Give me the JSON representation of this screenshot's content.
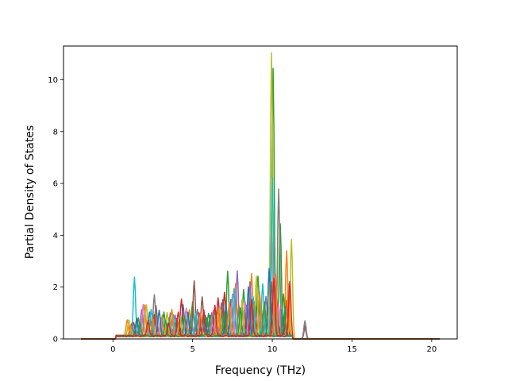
{
  "chart_data": {
    "type": "line",
    "title": "",
    "xlabel": "Frequency (THz)",
    "ylabel": "Partial Density of States",
    "xlim": [
      -3.1,
      21.6
    ],
    "ylim": [
      0,
      11.3
    ],
    "xticks": [
      0,
      5,
      10,
      15,
      20
    ],
    "yticks": [
      0,
      2,
      4,
      6,
      8,
      10
    ],
    "x_tick_labels": [
      "0",
      "5",
      "10",
      "15",
      "20"
    ],
    "y_tick_labels": [
      "0",
      "2",
      "4",
      "6",
      "8",
      "10"
    ],
    "grid": false,
    "legend": "none",
    "x_range_of_data": [
      -2,
      20.5
    ],
    "series": [
      {
        "color": "#1f77b4",
        "peaks": [
          [
            1.2,
            0.5
          ],
          [
            2.3,
            0.9
          ],
          [
            3.5,
            0.7
          ],
          [
            4.4,
            1.2
          ],
          [
            6.1,
            0.8
          ],
          [
            7.4,
            1.4
          ],
          [
            8.6,
            1.1
          ],
          [
            9.9,
            1.6
          ],
          [
            10.6,
            1.0
          ]
        ]
      },
      {
        "color": "#ff7f0e",
        "peaks": [
          [
            0.9,
            0.6
          ],
          [
            2.0,
            1.2
          ],
          [
            3.1,
            0.8
          ],
          [
            4.8,
            1.0
          ],
          [
            6.5,
            0.9
          ],
          [
            7.7,
            2.0
          ],
          [
            8.7,
            2.4
          ],
          [
            9.7,
            1.3
          ],
          [
            10.9,
            3.3
          ]
        ]
      },
      {
        "color": "#2ca02c",
        "peaks": [
          [
            1.6,
            0.7
          ],
          [
            3.2,
            0.9
          ],
          [
            5.0,
            1.3
          ],
          [
            6.0,
            0.9
          ],
          [
            7.2,
            2.5
          ],
          [
            8.2,
            1.8
          ],
          [
            9.1,
            2.3
          ],
          [
            10.05,
            10.3
          ],
          [
            10.5,
            4.3
          ]
        ]
      },
      {
        "color": "#d62728",
        "peaks": [
          [
            1.3,
            0.5
          ],
          [
            2.6,
            0.8
          ],
          [
            4.3,
            1.4
          ],
          [
            5.4,
            0.9
          ],
          [
            6.6,
            1.5
          ],
          [
            7.0,
            1.7
          ],
          [
            8.4,
            1.2
          ],
          [
            10.0,
            2.1
          ],
          [
            10.9,
            1.4
          ]
        ]
      },
      {
        "color": "#9467bd",
        "peaks": [
          [
            1.8,
            1.0
          ],
          [
            3.9,
            0.8
          ],
          [
            5.3,
            1.0
          ],
          [
            6.8,
            1.3
          ],
          [
            7.8,
            2.5
          ],
          [
            8.6,
            2.1
          ],
          [
            9.6,
            1.5
          ],
          [
            10.25,
            1.8
          ],
          [
            12.05,
            0.4
          ]
        ]
      },
      {
        "color": "#8c564b",
        "peaks": [
          [
            2.7,
            1.2
          ],
          [
            4.0,
            0.7
          ],
          [
            5.1,
            2.1
          ],
          [
            5.6,
            1.5
          ],
          [
            6.9,
            1.4
          ],
          [
            8.9,
            1.3
          ],
          [
            10.3,
            1.3
          ],
          [
            12.05,
            0.5
          ]
        ]
      },
      {
        "color": "#e377c2",
        "peaks": [
          [
            1.9,
            1.2
          ],
          [
            3.0,
            0.7
          ],
          [
            4.6,
            1.1
          ],
          [
            6.3,
            1.0
          ],
          [
            7.5,
            1.6
          ],
          [
            8.3,
            1.3
          ],
          [
            9.95,
            4.1
          ],
          [
            10.4,
            1.2
          ]
        ]
      },
      {
        "color": "#7f7f7f",
        "peaks": [
          [
            2.6,
            1.6
          ],
          [
            3.6,
            0.9
          ],
          [
            4.9,
            0.8
          ],
          [
            6.2,
            0.9
          ],
          [
            7.9,
            1.2
          ],
          [
            9.3,
            1.1
          ],
          [
            10.4,
            5.7
          ],
          [
            12.05,
            0.7
          ]
        ]
      },
      {
        "color": "#bcbd22",
        "peaks": [
          [
            1.0,
            0.6
          ],
          [
            2.1,
            1.2
          ],
          [
            3.4,
            0.9
          ],
          [
            4.2,
            0.8
          ],
          [
            6.7,
            1.1
          ],
          [
            8.1,
            1.4
          ],
          [
            9.0,
            2.3
          ],
          [
            9.95,
            10.9
          ],
          [
            11.2,
            3.7
          ]
        ]
      },
      {
        "color": "#17becf",
        "peaks": [
          [
            1.35,
            2.3
          ],
          [
            2.4,
            1.0
          ],
          [
            3.8,
            0.8
          ],
          [
            5.2,
            0.9
          ],
          [
            6.4,
            1.0
          ],
          [
            7.6,
            1.8
          ],
          [
            8.8,
            1.5
          ],
          [
            9.4,
            2.0
          ],
          [
            10.0,
            6.1
          ]
        ]
      },
      {
        "color": "#1f77b4",
        "peaks": [
          [
            1.5,
            0.7
          ],
          [
            2.9,
            1.0
          ],
          [
            4.7,
            0.9
          ],
          [
            5.8,
            0.8
          ],
          [
            7.1,
            1.2
          ],
          [
            8.5,
            1.9
          ],
          [
            9.8,
            2.6
          ],
          [
            10.8,
            1.1
          ]
        ]
      },
      {
        "color": "#ff7f0e",
        "peaks": [
          [
            1.1,
            0.4
          ],
          [
            2.5,
            0.7
          ],
          [
            3.7,
            1.0
          ],
          [
            5.5,
            0.9
          ],
          [
            6.6,
            1.0
          ],
          [
            7.3,
            1.3
          ],
          [
            9.2,
            1.7
          ],
          [
            10.2,
            2.4
          ],
          [
            11.0,
            2.0
          ]
        ]
      },
      {
        "color": "#2ca02c",
        "peaks": [
          [
            1.7,
            0.5
          ],
          [
            3.3,
            0.6
          ],
          [
            4.5,
            0.8
          ],
          [
            5.9,
            0.7
          ],
          [
            7.0,
            0.9
          ],
          [
            8.0,
            1.1
          ],
          [
            9.5,
            1.3
          ],
          [
            10.7,
            1.6
          ]
        ]
      },
      {
        "color": "#d62728",
        "peaks": [
          [
            2.2,
            0.6
          ],
          [
            3.5,
            0.5
          ],
          [
            4.1,
            0.9
          ],
          [
            5.7,
            1.0
          ],
          [
            6.4,
            1.2
          ],
          [
            8.7,
            1.4
          ],
          [
            10.1,
            2.2
          ],
          [
            11.1,
            2.1
          ]
        ]
      }
    ]
  }
}
